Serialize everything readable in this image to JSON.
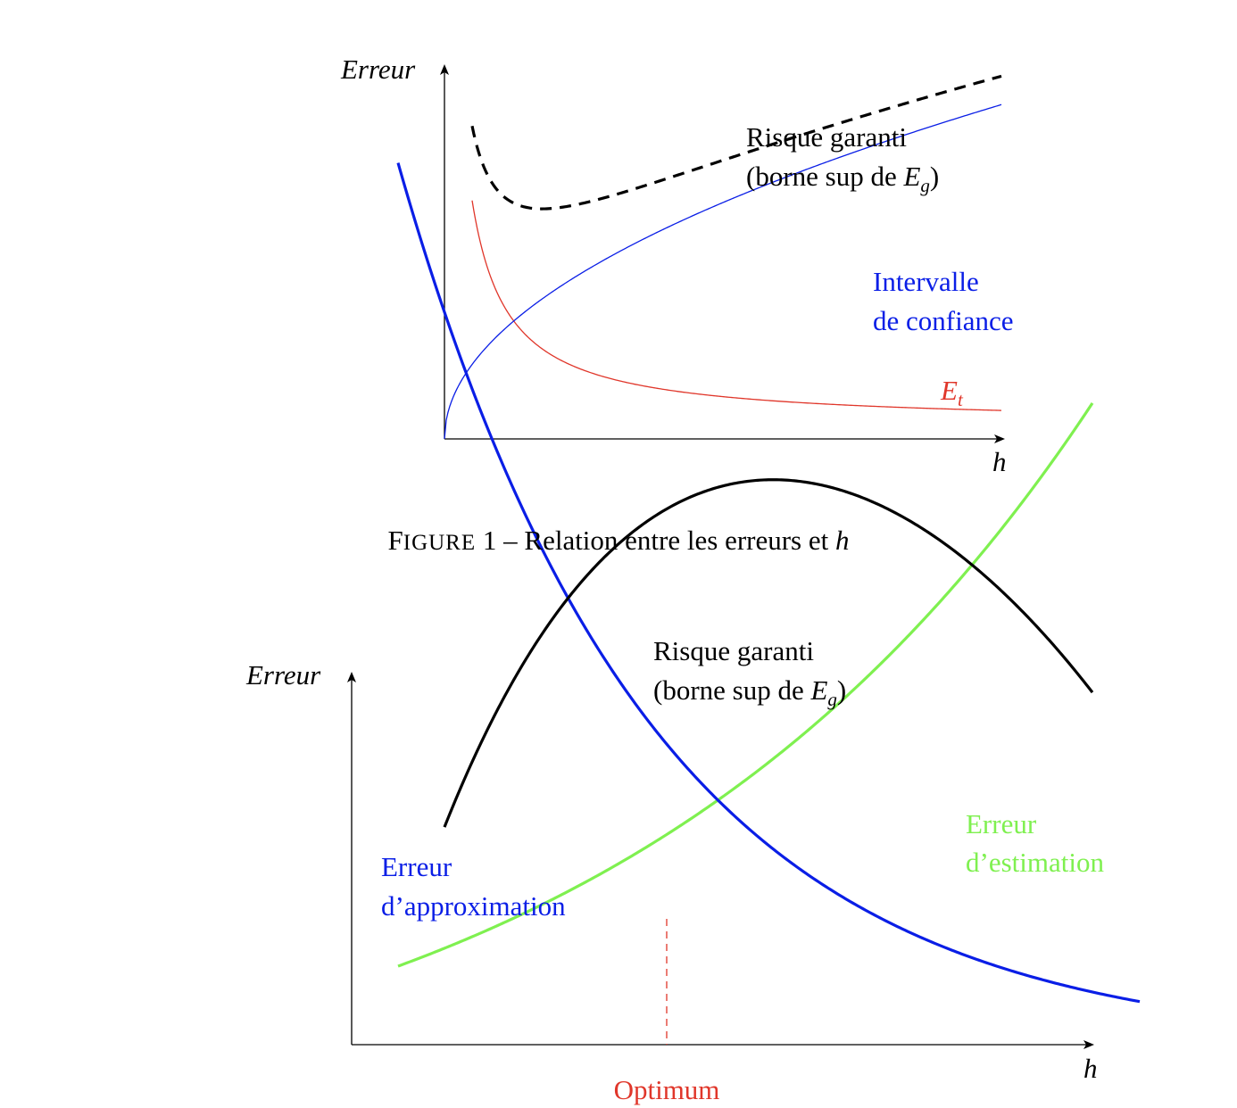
{
  "figure1": {
    "y_axis_label": "Erreur",
    "x_axis_label": "h",
    "risk_label_line1": "Risque garanti",
    "risk_label_line2_prefix": "(borne sup de ",
    "risk_label_var": "E",
    "risk_label_sub": "g",
    "risk_label_suffix": ")",
    "ci_label_line1": "Intervalle",
    "ci_label_line2": "de confiance",
    "et_label_var": "E",
    "et_label_sub": "t"
  },
  "caption": {
    "first_letter": "F",
    "smallcaps": "IGURE",
    "number": " 1 – Relation entre les erreurs et ",
    "var": "h"
  },
  "figure2": {
    "y_axis_label": "Erreur",
    "x_axis_label": "h",
    "risk_label_line1": "Risque garanti",
    "risk_label_line2_prefix": "(borne sup de ",
    "risk_label_var": "E",
    "risk_label_sub": "g",
    "risk_label_suffix": ")",
    "approx_label_line1": "Erreur",
    "approx_label_line2": "d’approximation",
    "estim_label_line1": "Erreur",
    "estim_label_line2": "d’estimation",
    "optimum_label": "Optimum"
  },
  "colors": {
    "black": "#000000",
    "red": "#e0362a",
    "blue": "#0a1ee6",
    "green": "#7ff050"
  },
  "chart_data": [
    {
      "type": "line",
      "series": [
        {
          "name": "Risque garanti (borne sup de E_g)",
          "style": "dashed",
          "color": "black",
          "function": "sum of the two other curves"
        },
        {
          "name": "Intervalle de confiance",
          "color": "blue",
          "function": "increasing, concave (square-root-like)"
        },
        {
          "name": "E_t",
          "color": "red",
          "function": "decreasing (1/h-like)"
        }
      ],
      "xlabel": "h",
      "ylabel": "Erreur",
      "ticks": "none"
    },
    {
      "type": "line",
      "series": [
        {
          "name": "Risque garanti (borne sup de E_g)",
          "color": "black",
          "function": "U-shaped, sum of the two other curves"
        },
        {
          "name": "Erreur d’approximation",
          "color": "blue",
          "function": "decreasing"
        },
        {
          "name": "Erreur d’estimation",
          "color": "green",
          "function": "increasing, convex"
        }
      ],
      "annotations": [
        "Optimum (dashed red vertical line at the intersection of the two curves)"
      ],
      "xlabel": "h",
      "ylabel": "Erreur",
      "ticks": "none"
    }
  ]
}
